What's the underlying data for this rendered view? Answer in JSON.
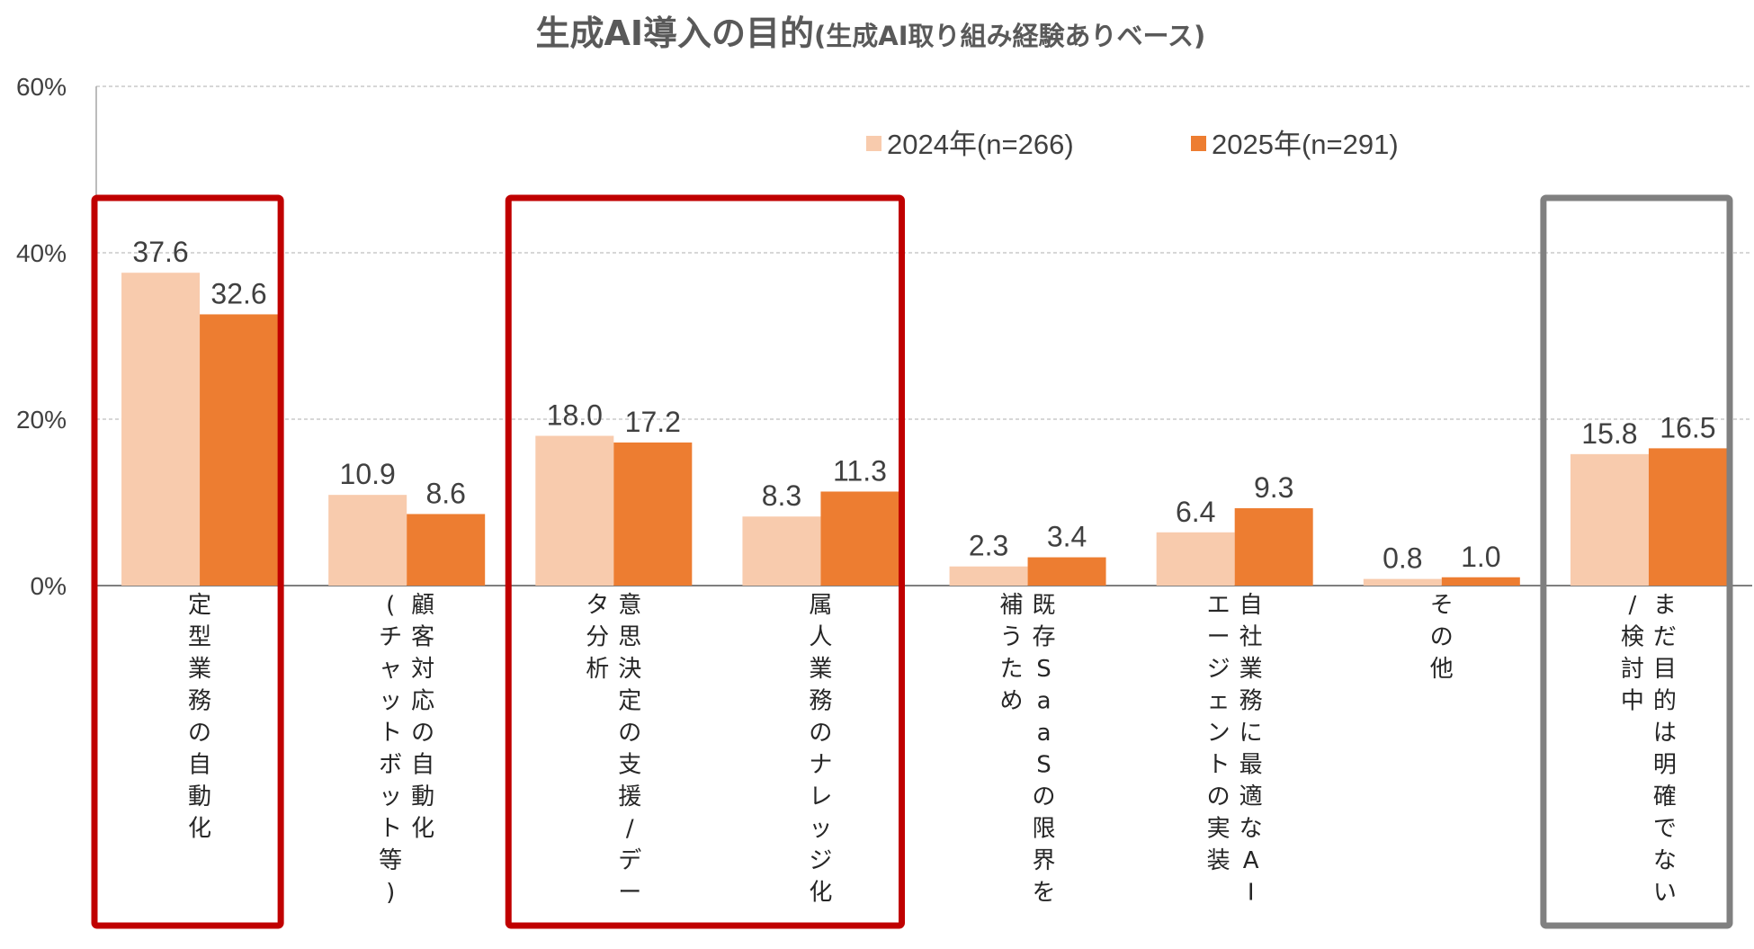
{
  "chart_data": {
    "type": "bar",
    "title": "生成AI導入の目的",
    "subtitle": "(生成AI取り組み経験ありベース)",
    "ylim": [
      0,
      60
    ],
    "yticks": [
      "0%",
      "20%",
      "40%",
      "60%"
    ],
    "grid": true,
    "legend_position": "top-right",
    "categories": [
      [
        "定型業務の自動化"
      ],
      [
        "顧客対応の自動化",
        "(チャットボット等)"
      ],
      [
        "意思決定の支援/デー",
        "タ分析"
      ],
      [
        "属人業務のナレッジ化"
      ],
      [
        "既存SaaSの限界を",
        "補うため"
      ],
      [
        "自社業務に最適なAI",
        "エージェントの実装"
      ],
      [
        "その他"
      ],
      [
        "まだ目的は明確でない",
        "/検討中"
      ]
    ],
    "series": [
      {
        "name": "2024年(n=266)",
        "color": "#F8CBAD",
        "values": [
          37.6,
          10.9,
          18.0,
          8.3,
          2.3,
          6.4,
          0.8,
          15.8
        ]
      },
      {
        "name": "2025年(n=291)",
        "color": "#ED7D31",
        "values": [
          32.6,
          8.6,
          17.2,
          11.3,
          3.4,
          9.3,
          1.0,
          16.5
        ]
      }
    ],
    "highlights": [
      {
        "categories": [
          0
        ],
        "color": "#C00000"
      },
      {
        "categories": [
          2,
          3
        ],
        "color": "#C00000"
      },
      {
        "categories": [
          7
        ],
        "color": "#808080"
      }
    ]
  }
}
